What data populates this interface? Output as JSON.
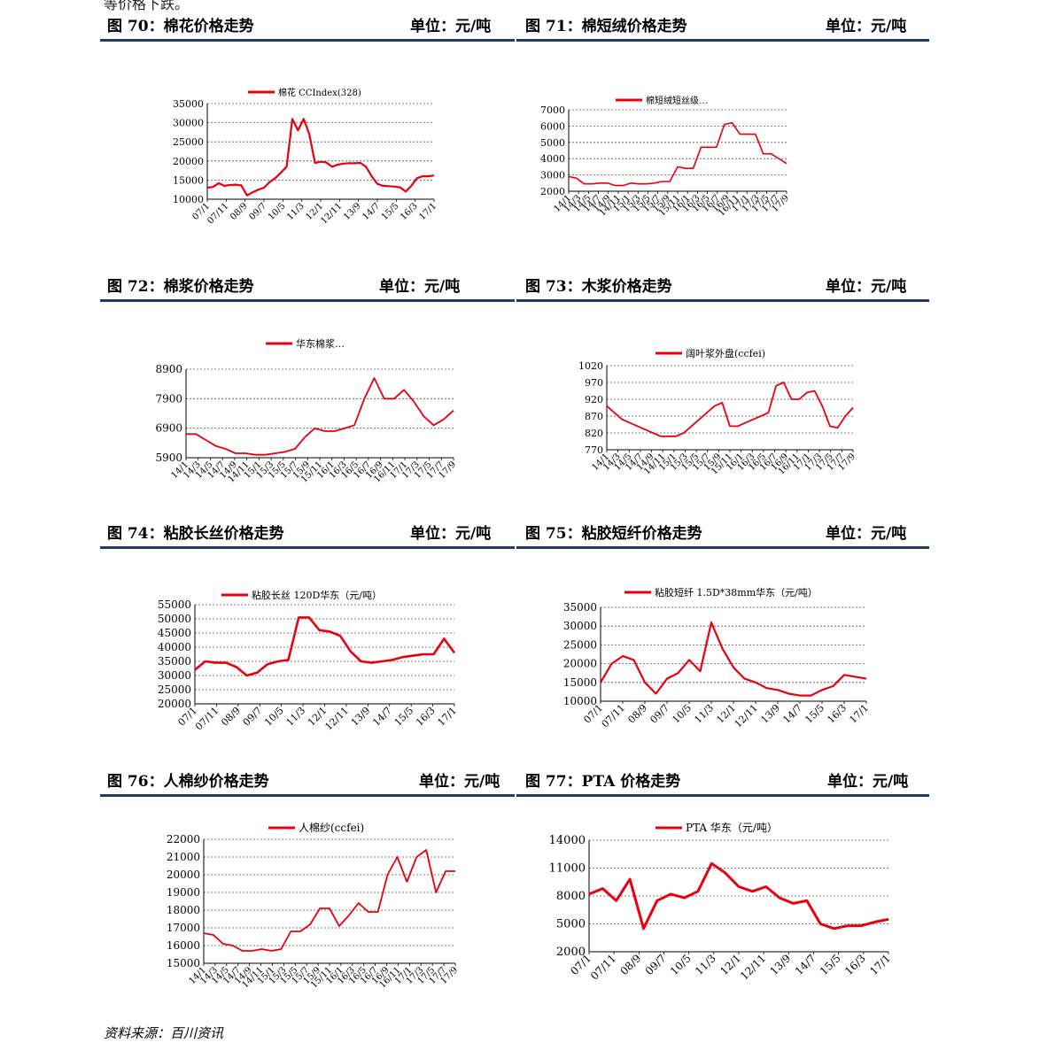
{
  "top_text": "等价格下跌。",
  "source": "资料来源：百川资讯",
  "unit_label": "单位：元/吨",
  "figures": [
    {
      "id": "f70",
      "title": "图 70：棉花价格走势",
      "unit": "单位：元/吨"
    },
    {
      "id": "f71",
      "title": "图 71：棉短绒价格走势",
      "unit": "单位：元/吨"
    },
    {
      "id": "f72",
      "title": "图 72：棉浆价格走势",
      "unit": "单位：元/吨"
    },
    {
      "id": "f73",
      "title": "图 73：木浆价格走势",
      "unit": "单位：元/吨"
    },
    {
      "id": "f74",
      "title": "图 74：粘胶长丝价格走势",
      "unit": "单位：元/吨"
    },
    {
      "id": "f75",
      "title": "图 75：粘胶短纤价格走势",
      "unit": "单位：元/吨"
    },
    {
      "id": "f76",
      "title": "图 76：人棉纱价格走势",
      "unit": "单位：元/吨"
    },
    {
      "id": "f77",
      "title": "图 77：PTA 价格走势",
      "unit": "单位：元/吨"
    }
  ],
  "colors": {
    "line": "#e8000f",
    "grid": "#555555",
    "axis": "#000000",
    "header_rule": "#1f3d6b"
  },
  "chart_data": [
    {
      "id": "f70",
      "type": "line",
      "legend": "棉花 CCIndex(328)",
      "ylim": [
        10000,
        35000
      ],
      "yticks": [
        10000,
        15000,
        20000,
        25000,
        30000,
        35000
      ],
      "xticks": [
        "07/1",
        "07/11",
        "08/9",
        "09/7",
        "10/5",
        "11/3",
        "12/1",
        "12/11",
        "13/9",
        "14/7",
        "15/5",
        "16/3",
        "17/1"
      ],
      "series": [
        {
          "values": [
            13000,
            13200,
            14200,
            13500,
            13700,
            13800,
            13600,
            11000,
            11800,
            12500,
            13000,
            14500,
            15500,
            17000,
            18500,
            31000,
            28000,
            31000,
            27000,
            19500,
            19800,
            19600,
            18500,
            19000,
            19300,
            19400,
            19400,
            19500,
            18500,
            16000,
            14000,
            13500,
            13400,
            13300,
            13100,
            12000,
            13500,
            15500,
            16000,
            16000,
            16200
          ]
        }
      ]
    },
    {
      "id": "f71",
      "type": "line",
      "legend": "棉短绒短丝级…",
      "ylim": [
        2000,
        7000
      ],
      "yticks": [
        2000,
        3000,
        4000,
        5000,
        6000,
        7000
      ],
      "xticks": [
        "14/1",
        "14/3",
        "14/5",
        "14/7",
        "14/9",
        "14/11",
        "15/1",
        "15/3",
        "15/5",
        "15/7",
        "15/9",
        "15/11",
        "16/1",
        "16/3",
        "16/5",
        "16/7",
        "16/9",
        "16/11",
        "17/1",
        "17/3",
        "17/5",
        "17/7",
        "17/9"
      ],
      "series": [
        {
          "values": [
            2900,
            2800,
            2450,
            2450,
            2500,
            2500,
            2350,
            2350,
            2500,
            2450,
            2450,
            2500,
            2600,
            2600,
            3500,
            3400,
            3400,
            4700,
            4700,
            4700,
            6100,
            6200,
            5500,
            5500,
            5500,
            4300,
            4300,
            4000,
            3700
          ]
        }
      ]
    },
    {
      "id": "f72",
      "type": "line",
      "legend": "华东棉浆…",
      "ylim": [
        5900,
        8900
      ],
      "yticks": [
        5900,
        6900,
        7900,
        8900
      ],
      "xticks": [
        "14/1",
        "14/3",
        "14/5",
        "14/7",
        "14/9",
        "14/11",
        "15/1",
        "15/3",
        "15/5",
        "15/7",
        "15/9",
        "15/11",
        "16/1",
        "16/3",
        "16/5",
        "16/7",
        "16/9",
        "16/11",
        "17/1",
        "17/3",
        "17/5",
        "17/7",
        "17/9"
      ],
      "series": [
        {
          "values": [
            6700,
            6700,
            6500,
            6300,
            6200,
            6050,
            6050,
            6000,
            6000,
            6050,
            6100,
            6200,
            6600,
            6900,
            6800,
            6800,
            6900,
            7000,
            7900,
            8600,
            7900,
            7900,
            8200,
            7800,
            7300,
            7000,
            7200,
            7500
          ]
        }
      ]
    },
    {
      "id": "f73",
      "type": "line",
      "legend": "阔叶浆外盘(ccfei)",
      "ylim": [
        770,
        1020
      ],
      "yticks": [
        770,
        820,
        870,
        920,
        970,
        1020
      ],
      "xticks": [
        "14/1",
        "14/3",
        "14/5",
        "14/7",
        "14/9",
        "14/11",
        "15/1",
        "15/3",
        "15/5",
        "15/7",
        "15/9",
        "15/11",
        "16/1",
        "16/3",
        "16/5",
        "16/7",
        "16/9",
        "16/11",
        "17/1",
        "17/3",
        "17/5",
        "17/7",
        "17/9"
      ],
      "series": [
        {
          "values": [
            900,
            880,
            860,
            850,
            840,
            830,
            820,
            810,
            810,
            810,
            820,
            840,
            860,
            880,
            900,
            910,
            840,
            840,
            850,
            860,
            870,
            880,
            960,
            970,
            920,
            920,
            940,
            945,
            900,
            840,
            835,
            870,
            895
          ]
        }
      ]
    },
    {
      "id": "f74",
      "type": "line",
      "legend": "粘胶长丝 120D华东（元/吨）",
      "ylim": [
        20000,
        55000
      ],
      "yticks": [
        20000,
        25000,
        30000,
        35000,
        40000,
        45000,
        50000,
        55000
      ],
      "xticks": [
        "07/1",
        "07/11",
        "08/9",
        "09/7",
        "10/5",
        "11/3",
        "12/1",
        "12/11",
        "13/9",
        "14/7",
        "15/5",
        "16/3",
        "17/1"
      ],
      "series": [
        {
          "values": [
            32000,
            35000,
            34500,
            34500,
            33000,
            30000,
            31000,
            34000,
            35000,
            35500,
            50500,
            50500,
            46000,
            45500,
            44000,
            38500,
            35000,
            34500,
            35000,
            35500,
            36500,
            37000,
            37500,
            37500,
            43000,
            38000
          ]
        }
      ]
    },
    {
      "id": "f75",
      "type": "line",
      "legend": "粘胶短纤 1.5D*38mm华东（元/吨）",
      "ylim": [
        10000,
        35000
      ],
      "yticks": [
        10000,
        15000,
        20000,
        25000,
        30000,
        35000
      ],
      "xticks": [
        "07/1",
        "07/11",
        "08/9",
        "09/7",
        "10/5",
        "11/3",
        "12/1",
        "12/11",
        "13/9",
        "14/7",
        "15/5",
        "16/3",
        "17/1"
      ],
      "series": [
        {
          "values": [
            15000,
            20000,
            22000,
            21000,
            15000,
            12000,
            16000,
            17500,
            21000,
            18000,
            31000,
            24000,
            19000,
            16000,
            15000,
            13500,
            13000,
            12000,
            11500,
            11500,
            13000,
            14000,
            17000,
            16500,
            16000
          ]
        }
      ]
    },
    {
      "id": "f76",
      "type": "line",
      "legend": "人棉纱(ccfei)",
      "ylim": [
        15000,
        22000
      ],
      "yticks": [
        15000,
        16000,
        17000,
        18000,
        19000,
        20000,
        21000,
        22000
      ],
      "xticks": [
        "14/1",
        "14/3",
        "14/5",
        "14/7",
        "14/9",
        "14/11",
        "15/1",
        "15/3",
        "15/5",
        "15/7",
        "15/9",
        "15/11",
        "16/1",
        "16/3",
        "16/5",
        "16/7",
        "16/9",
        "16/11",
        "17/1",
        "17/3",
        "17/5",
        "17/7",
        "17/9"
      ],
      "series": [
        {
          "values": [
            16700,
            16600,
            16100,
            16000,
            15700,
            15700,
            15800,
            15700,
            15800,
            16800,
            16800,
            17200,
            18100,
            18100,
            17100,
            17700,
            18400,
            17900,
            17900,
            20000,
            21000,
            19600,
            21000,
            21400,
            19000,
            20200,
            20200
          ]
        }
      ]
    },
    {
      "id": "f77",
      "type": "line",
      "legend": "PTA 华东（元/吨）",
      "ylim": [
        2000,
        14000
      ],
      "yticks": [
        2000,
        5000,
        8000,
        11000,
        14000
      ],
      "xticks": [
        "07/1",
        "07/11",
        "08/9",
        "09/7",
        "10/5",
        "11/3",
        "12/1",
        "12/11",
        "13/9",
        "14/7",
        "15/5",
        "16/3",
        "17/1"
      ],
      "series": [
        {
          "values": [
            8200,
            8800,
            7500,
            9800,
            4500,
            7500,
            8200,
            7800,
            8500,
            11500,
            10500,
            9000,
            8500,
            9000,
            7800,
            7200,
            7500,
            5000,
            4500,
            4800,
            4800,
            5200,
            5500
          ]
        }
      ]
    }
  ]
}
